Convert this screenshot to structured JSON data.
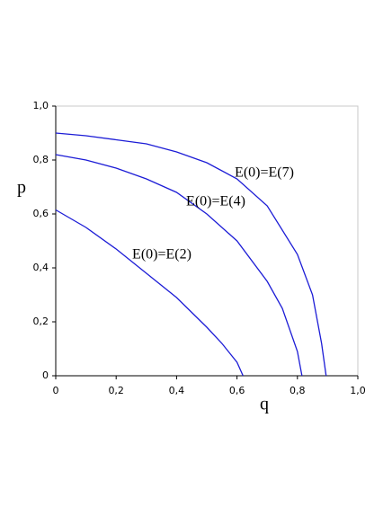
{
  "chart_data": {
    "type": "line",
    "x_label": "q",
    "y_label": "p",
    "xlim": [
      0,
      1
    ],
    "ylim": [
      0,
      1
    ],
    "xticks": [
      0,
      {
        "value": 0.2,
        "label": "0,2"
      },
      {
        "value": 0.4,
        "label": "0,4"
      },
      {
        "value": 0.6,
        "label": "0,6"
      },
      {
        "value": 0.8,
        "label": "0,8"
      },
      {
        "value": 1,
        "label": "1,0"
      }
    ],
    "yticks": [
      0,
      {
        "value": 0.2,
        "label": "0,2"
      },
      {
        "value": 0.4,
        "label": "0,4"
      },
      {
        "value": 0.6,
        "label": "0,6"
      },
      {
        "value": 0.8,
        "label": "0,8"
      },
      {
        "value": 1,
        "label": "1,0"
      }
    ],
    "series": [
      {
        "name": "E(0)=E(2)",
        "color": "#1c1cd6",
        "x": [
          0,
          0.1,
          0.2,
          0.3,
          0.4,
          0.5,
          0.55,
          0.6,
          0.62
        ],
        "values": [
          0.615,
          0.55,
          0.47,
          0.38,
          0.29,
          0.18,
          0.12,
          0.05,
          0
        ]
      },
      {
        "name": "E(0)=E(4)",
        "color": "#1c1cd6",
        "x": [
          0,
          0.1,
          0.2,
          0.3,
          0.4,
          0.5,
          0.6,
          0.7,
          0.75,
          0.8,
          0.815
        ],
        "values": [
          0.82,
          0.8,
          0.77,
          0.73,
          0.68,
          0.6,
          0.5,
          0.35,
          0.25,
          0.09,
          0
        ]
      },
      {
        "name": "E(0)=E(7)",
        "color": "#1c1cd6",
        "x": [
          0,
          0.1,
          0.2,
          0.3,
          0.4,
          0.5,
          0.6,
          0.7,
          0.8,
          0.85,
          0.88,
          0.895
        ],
        "values": [
          0.9,
          0.89,
          0.875,
          0.86,
          0.83,
          0.79,
          0.73,
          0.63,
          0.45,
          0.3,
          0.12,
          0
        ]
      }
    ]
  }
}
